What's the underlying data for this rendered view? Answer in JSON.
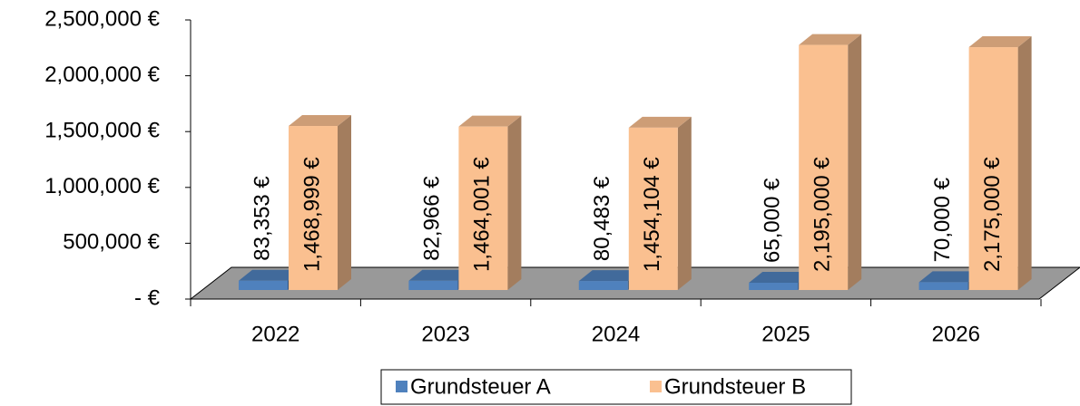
{
  "chart_data": {
    "type": "bar3d",
    "categories": [
      "2022",
      "2023",
      "2024",
      "2025",
      "2026"
    ],
    "series": [
      {
        "name": "Grundsteuer A",
        "color": "#4f81bd",
        "values": [
          83353,
          82966,
          80483,
          65000,
          70000
        ],
        "value_labels": [
          "83,353 €",
          "82,966 €",
          "80,483 €",
          "65,000 €",
          "70,000 €"
        ]
      },
      {
        "name": "Grundsteuer B",
        "color": "#fac090",
        "values": [
          1468999,
          1464001,
          1454104,
          2195000,
          2175000
        ],
        "value_labels": [
          "1,468,999 €",
          "1,464,001 €",
          "1,454,104 €",
          "2,195,000 €",
          "2,175,000 €"
        ]
      }
    ],
    "ylim": [
      0,
      2500000
    ],
    "yticks": [
      {
        "value": 0,
        "label": "-  €"
      },
      {
        "value": 500000,
        "label": "500,000 €"
      },
      {
        "value": 1000000,
        "label": "1,000,000 €"
      },
      {
        "value": 1500000,
        "label": "1,500,000 €"
      },
      {
        "value": 2000000,
        "label": "2,000,000 €"
      },
      {
        "value": 2500000,
        "label": "2,500,000 €"
      }
    ],
    "legend": "bottom"
  }
}
